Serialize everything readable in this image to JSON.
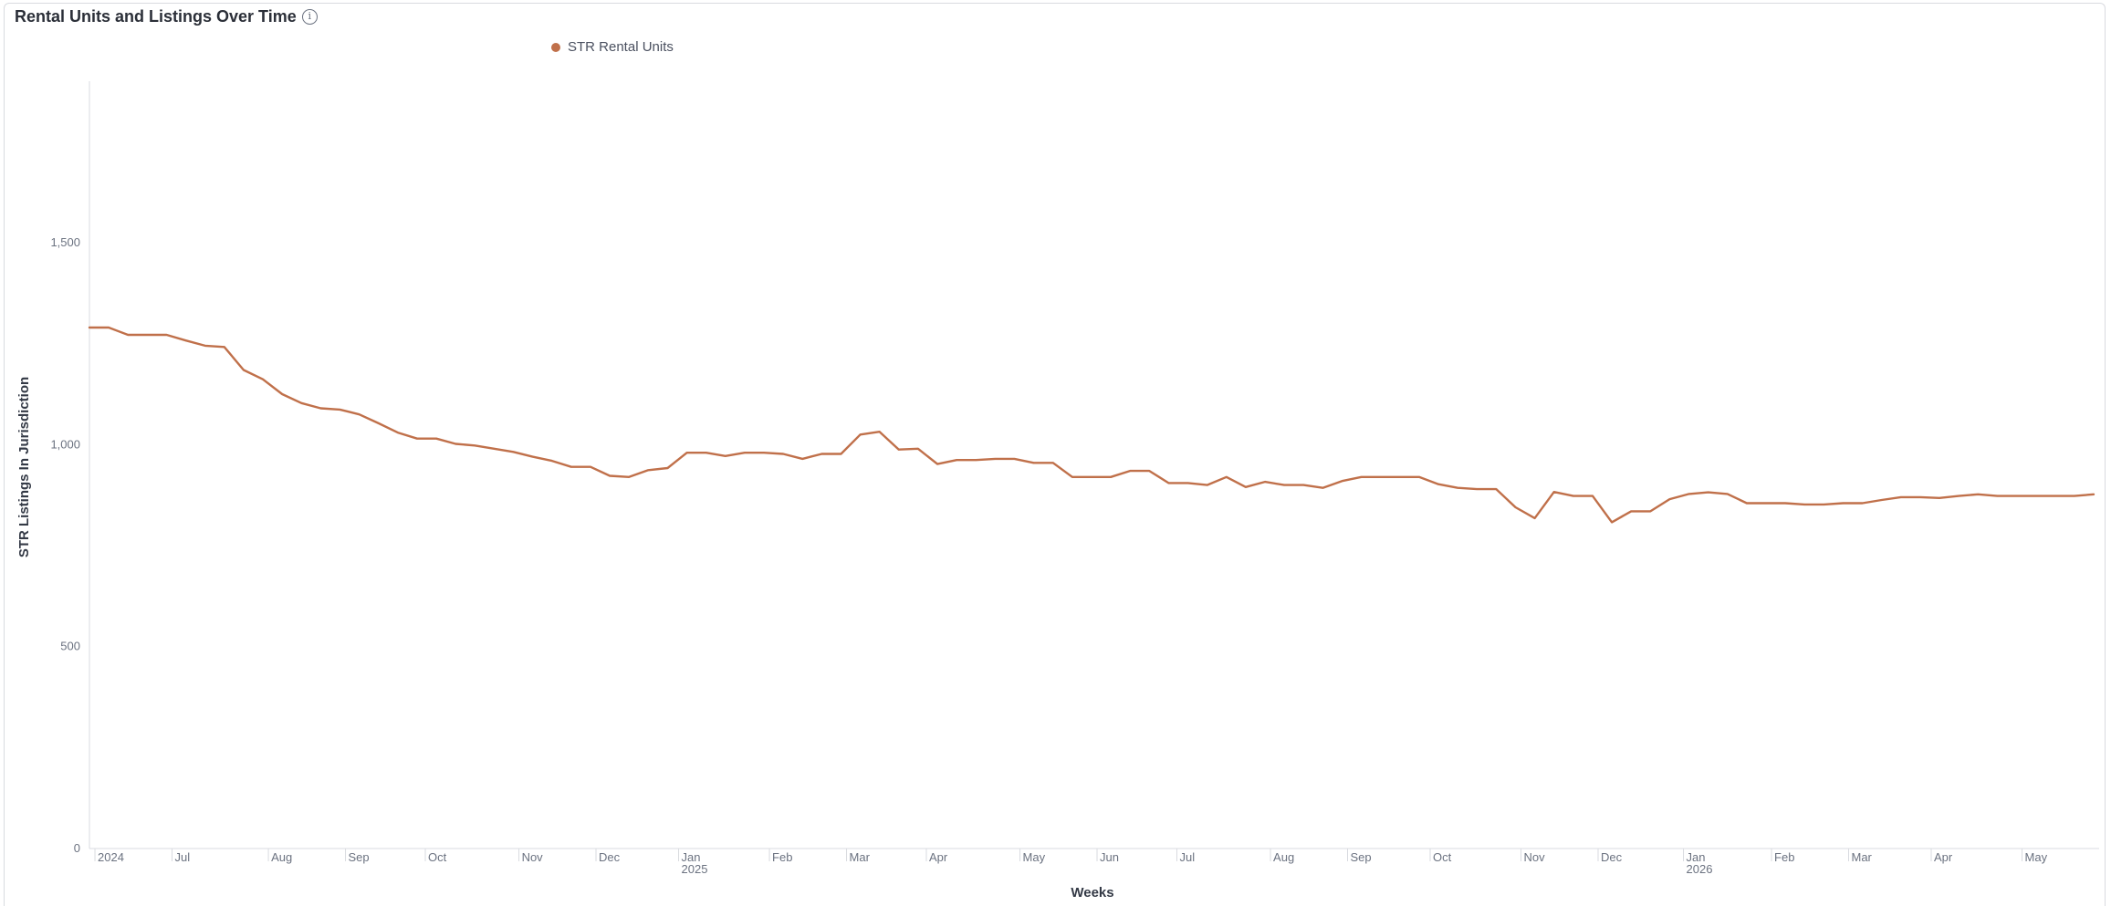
{
  "panel": {
    "title": "Rental Units and Listings Over Time",
    "info_icon": "info-icon"
  },
  "colors": {
    "series": "#c0704a",
    "axis": "#d9dbe0",
    "tick_text": "#6b7280"
  },
  "chart_data": {
    "type": "line",
    "title": "Rental Units and Listings Over Time",
    "xlabel": "Weeks",
    "ylabel": "STR Listings In Jurisdiction",
    "ylim": [
      0,
      1900
    ],
    "yticks": [
      0,
      500,
      1000,
      1500
    ],
    "ytick_labels": [
      "0",
      "500",
      "1,000",
      "1,500"
    ],
    "grid": false,
    "legend_position": "top",
    "xlim": [
      "2024-06-01",
      "2026-06-01"
    ],
    "xticks": [
      {
        "date": "2024-06-03",
        "label": "2024",
        "sub": ""
      },
      {
        "date": "2024-07-01",
        "label": "Jul",
        "sub": ""
      },
      {
        "date": "2024-08-05",
        "label": "Aug",
        "sub": ""
      },
      {
        "date": "2024-09-02",
        "label": "Sep",
        "sub": ""
      },
      {
        "date": "2024-10-01",
        "label": "Oct",
        "sub": ""
      },
      {
        "date": "2024-11-04",
        "label": "Nov",
        "sub": ""
      },
      {
        "date": "2024-12-02",
        "label": "Dec",
        "sub": ""
      },
      {
        "date": "2025-01-01",
        "label": "Jan",
        "sub": "2025"
      },
      {
        "date": "2025-02-03",
        "label": "Feb",
        "sub": ""
      },
      {
        "date": "2025-03-03",
        "label": "Mar",
        "sub": ""
      },
      {
        "date": "2025-04-01",
        "label": "Apr",
        "sub": ""
      },
      {
        "date": "2025-05-05",
        "label": "May",
        "sub": ""
      },
      {
        "date": "2025-06-02",
        "label": "Jun",
        "sub": ""
      },
      {
        "date": "2025-07-01",
        "label": "Jul",
        "sub": ""
      },
      {
        "date": "2025-08-04",
        "label": "Aug",
        "sub": ""
      },
      {
        "date": "2025-09-01",
        "label": "Sep",
        "sub": ""
      },
      {
        "date": "2025-10-01",
        "label": "Oct",
        "sub": ""
      },
      {
        "date": "2025-11-03",
        "label": "Nov",
        "sub": ""
      },
      {
        "date": "2025-12-01",
        "label": "Dec",
        "sub": ""
      },
      {
        "date": "2026-01-01",
        "label": "Jan",
        "sub": "2026"
      },
      {
        "date": "2026-02-02",
        "label": "Feb",
        "sub": ""
      },
      {
        "date": "2026-03-02",
        "label": "Mar",
        "sub": ""
      },
      {
        "date": "2026-04-01",
        "label": "Apr",
        "sub": ""
      },
      {
        "date": "2026-05-04",
        "label": "May",
        "sub": ""
      }
    ],
    "series": [
      {
        "name": "STR Rental Units",
        "color": "#c0704a",
        "points": [
          [
            "2024-06-01",
            1290
          ],
          [
            "2024-06-08",
            1290
          ],
          [
            "2024-06-15",
            1272
          ],
          [
            "2024-06-22",
            1272
          ],
          [
            "2024-06-29",
            1272
          ],
          [
            "2024-07-06",
            1258
          ],
          [
            "2024-07-13",
            1245
          ],
          [
            "2024-07-20",
            1242
          ],
          [
            "2024-07-27",
            1185
          ],
          [
            "2024-08-03",
            1162
          ],
          [
            "2024-08-10",
            1125
          ],
          [
            "2024-08-17",
            1103
          ],
          [
            "2024-08-24",
            1090
          ],
          [
            "2024-08-31",
            1087
          ],
          [
            "2024-09-07",
            1075
          ],
          [
            "2024-09-14",
            1053
          ],
          [
            "2024-09-21",
            1030
          ],
          [
            "2024-09-28",
            1015
          ],
          [
            "2024-10-05",
            1015
          ],
          [
            "2024-10-12",
            1002
          ],
          [
            "2024-10-19",
            998
          ],
          [
            "2024-10-26",
            990
          ],
          [
            "2024-11-02",
            982
          ],
          [
            "2024-11-09",
            970
          ],
          [
            "2024-11-16",
            960
          ],
          [
            "2024-11-23",
            945
          ],
          [
            "2024-11-30",
            945
          ],
          [
            "2024-12-07",
            923
          ],
          [
            "2024-12-14",
            920
          ],
          [
            "2024-12-21",
            937
          ],
          [
            "2024-12-28",
            942
          ],
          [
            "2025-01-04",
            980
          ],
          [
            "2025-01-11",
            980
          ],
          [
            "2025-01-18",
            972
          ],
          [
            "2025-01-25",
            980
          ],
          [
            "2025-02-01",
            980
          ],
          [
            "2025-02-08",
            977
          ],
          [
            "2025-02-15",
            965
          ],
          [
            "2025-02-22",
            977
          ],
          [
            "2025-03-01",
            977
          ],
          [
            "2025-03-08",
            1025
          ],
          [
            "2025-03-15",
            1032
          ],
          [
            "2025-03-22",
            988
          ],
          [
            "2025-03-29",
            990
          ],
          [
            "2025-04-05",
            952
          ],
          [
            "2025-04-12",
            962
          ],
          [
            "2025-04-19",
            962
          ],
          [
            "2025-04-26",
            965
          ],
          [
            "2025-05-03",
            965
          ],
          [
            "2025-05-10",
            955
          ],
          [
            "2025-05-17",
            955
          ],
          [
            "2025-05-24",
            920
          ],
          [
            "2025-05-31",
            920
          ],
          [
            "2025-06-07",
            920
          ],
          [
            "2025-06-14",
            935
          ],
          [
            "2025-06-21",
            935
          ],
          [
            "2025-06-28",
            905
          ],
          [
            "2025-07-05",
            905
          ],
          [
            "2025-07-12",
            900
          ],
          [
            "2025-07-19",
            920
          ],
          [
            "2025-07-26",
            895
          ],
          [
            "2025-08-02",
            908
          ],
          [
            "2025-08-09",
            900
          ],
          [
            "2025-08-16",
            900
          ],
          [
            "2025-08-23",
            893
          ],
          [
            "2025-08-30",
            910
          ],
          [
            "2025-09-06",
            920
          ],
          [
            "2025-09-13",
            920
          ],
          [
            "2025-09-20",
            920
          ],
          [
            "2025-09-27",
            920
          ],
          [
            "2025-10-04",
            902
          ],
          [
            "2025-10-11",
            893
          ],
          [
            "2025-10-18",
            890
          ],
          [
            "2025-10-25",
            890
          ],
          [
            "2025-11-01",
            845
          ],
          [
            "2025-11-08",
            818
          ],
          [
            "2025-11-15",
            883
          ],
          [
            "2025-11-22",
            873
          ],
          [
            "2025-11-29",
            873
          ],
          [
            "2025-12-06",
            808
          ],
          [
            "2025-12-13",
            835
          ],
          [
            "2025-12-20",
            835
          ],
          [
            "2025-12-27",
            865
          ],
          [
            "2026-01-03",
            878
          ],
          [
            "2026-01-10",
            882
          ],
          [
            "2026-01-17",
            878
          ],
          [
            "2026-01-24",
            855
          ],
          [
            "2026-01-31",
            855
          ],
          [
            "2026-02-07",
            855
          ],
          [
            "2026-02-14",
            852
          ],
          [
            "2026-02-21",
            852
          ],
          [
            "2026-02-28",
            855
          ],
          [
            "2026-03-07",
            855
          ],
          [
            "2026-03-14",
            863
          ],
          [
            "2026-03-21",
            870
          ],
          [
            "2026-03-28",
            870
          ],
          [
            "2026-04-04",
            868
          ],
          [
            "2026-04-11",
            873
          ],
          [
            "2026-04-18",
            877
          ],
          [
            "2026-04-25",
            873
          ],
          [
            "2026-05-02",
            873
          ],
          [
            "2026-05-09",
            873
          ],
          [
            "2026-05-16",
            873
          ],
          [
            "2026-05-23",
            873
          ],
          [
            "2026-05-30",
            877
          ]
        ]
      }
    ]
  }
}
